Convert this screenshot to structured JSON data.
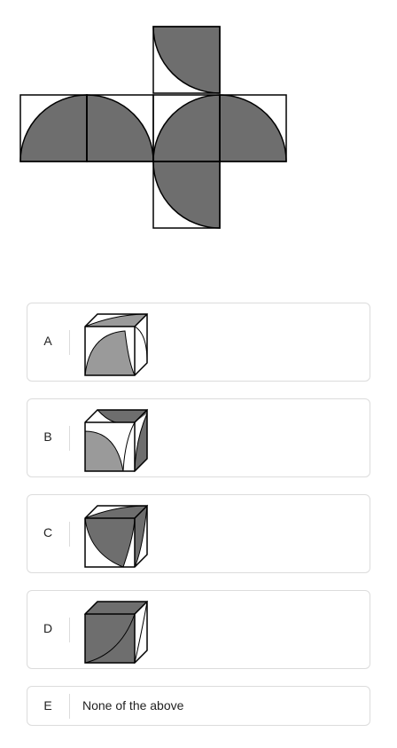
{
  "question": {
    "figure_icon": "cube-net-figure"
  },
  "options": [
    {
      "letter": "A",
      "figure_icon": "cube-option-a-icon"
    },
    {
      "letter": "B",
      "figure_icon": "cube-option-b-icon"
    },
    {
      "letter": "C",
      "figure_icon": "cube-option-c-icon"
    },
    {
      "letter": "D",
      "figure_icon": "cube-option-d-icon"
    },
    {
      "letter": "E",
      "text": "None of the above"
    }
  ],
  "colors": {
    "shade": "#6e6e6e",
    "shade_light": "#9a9a9a",
    "border": "#dcdcdc",
    "stroke": "#000000"
  }
}
